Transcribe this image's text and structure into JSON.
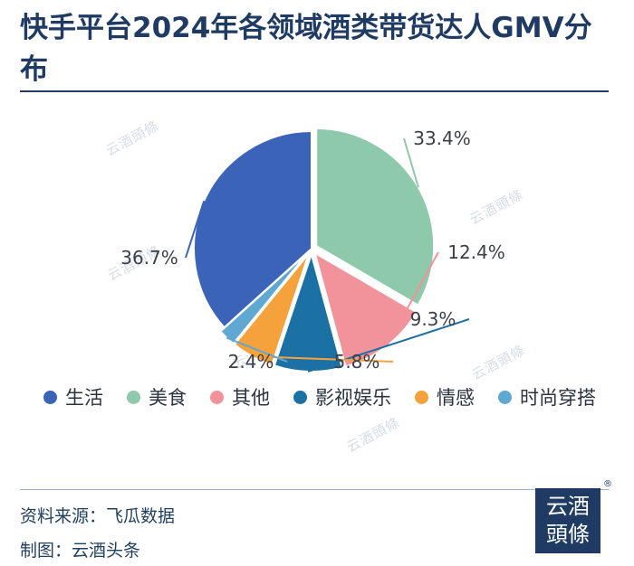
{
  "title": "快手平台2024年各领域酒类带货达人GMV分布",
  "chart_data": {
    "type": "pie",
    "title": "快手平台2024年各领域酒类带货达人GMV分布",
    "unit": "%",
    "slices": [
      {
        "label": "生活",
        "value": 36.7,
        "display": "36.7%",
        "color": "#3b63b8"
      },
      {
        "label": "美食",
        "value": 33.4,
        "display": "33.4%",
        "color": "#8dc9aa"
      },
      {
        "label": "其他",
        "value": 12.4,
        "display": "12.4%",
        "color": "#f2929a"
      },
      {
        "label": "影视娱乐",
        "value": 9.3,
        "display": "9.3%",
        "color": "#1b71a3"
      },
      {
        "label": "情感",
        "value": 5.8,
        "display": "5.8%",
        "color": "#f6a23c"
      },
      {
        "label": "时尚穿搭",
        "value": 2.4,
        "display": "2.4%",
        "color": "#5ea8d2"
      }
    ],
    "legend_position": "bottom"
  },
  "footer": {
    "source": "资料来源：飞瓜数据",
    "credit": "制图：云酒头条"
  },
  "watermark_text": "云酒頭條",
  "logo": {
    "line1": "云酒",
    "line2": "頭條",
    "mark": "®"
  }
}
